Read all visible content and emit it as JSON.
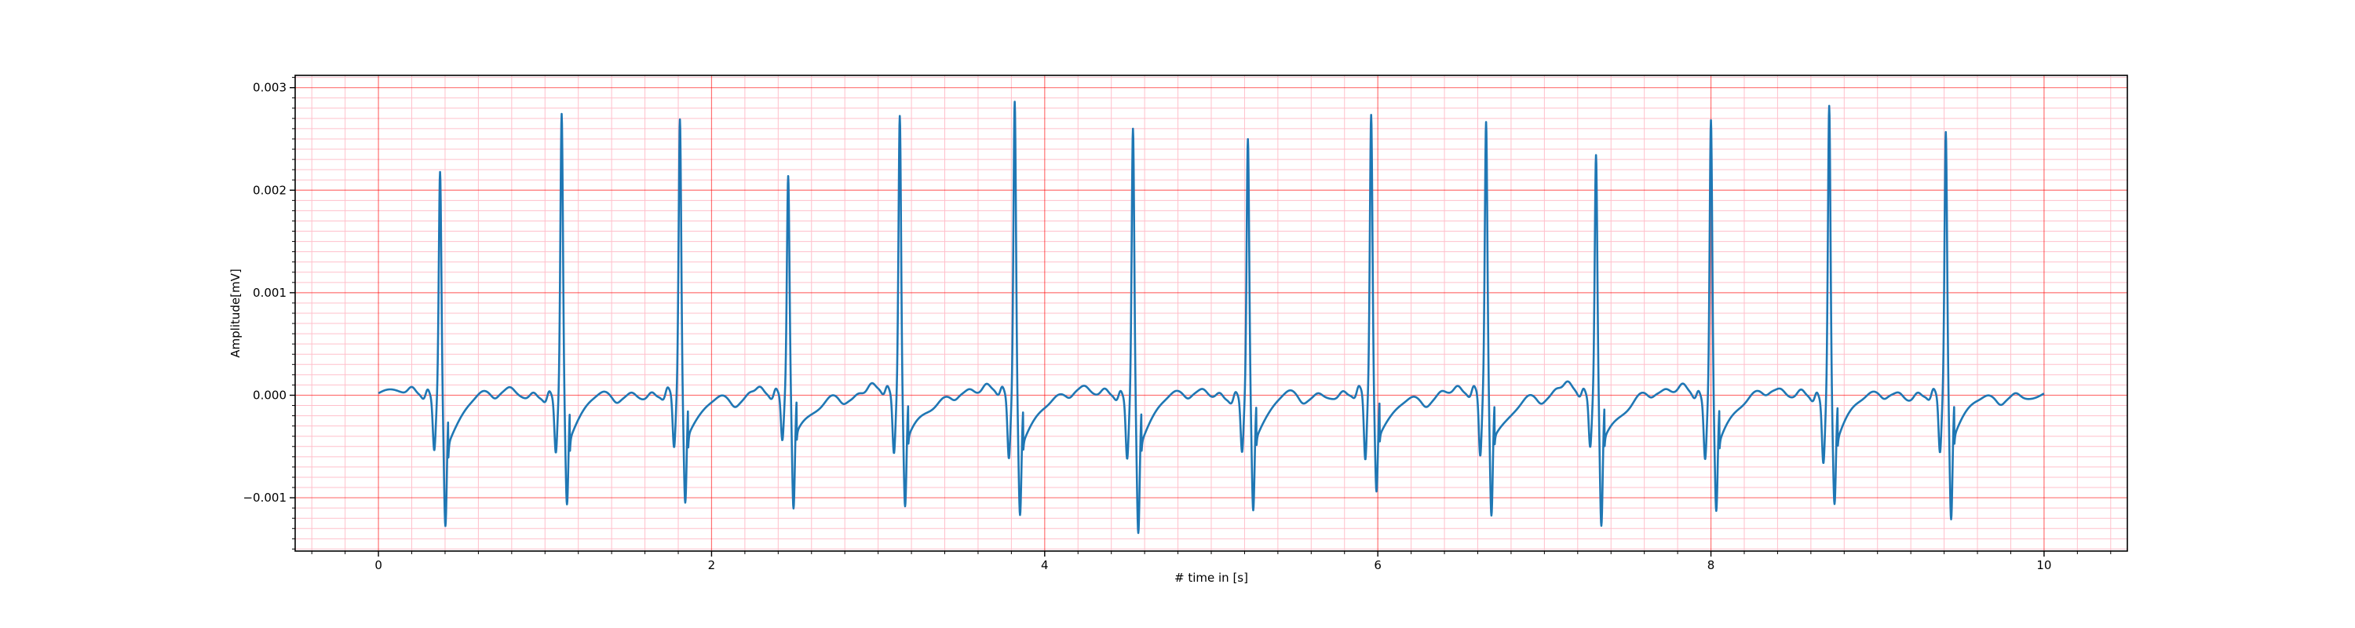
{
  "chart_data": {
    "type": "line",
    "title": "",
    "xlabel": "# time in [s]",
    "ylabel": "Amplitude[mV]",
    "xlim": [
      -0.5,
      10.5
    ],
    "ylim": [
      -0.00152,
      0.00312
    ],
    "x_ticks": [
      0,
      2,
      4,
      6,
      8,
      10
    ],
    "x_tick_labels": [
      "0",
      "2",
      "4",
      "6",
      "8",
      "10"
    ],
    "y_ticks": [
      -0.001,
      0.0,
      0.001,
      0.002,
      0.003
    ],
    "y_tick_labels": [
      "−0.001",
      "0.000",
      "0.001",
      "0.002",
      "0.003"
    ],
    "grid": {
      "major": true,
      "minor": true,
      "major_color": "#ff0000",
      "minor_color": "#ffc0cb"
    },
    "series": [
      {
        "color": "#1f77b4",
        "x_start": 0.0,
        "x_end": 10.0,
        "baseline": 0.0,
        "beats": [
          {
            "t": 0.37,
            "r": 0.00222,
            "q": -0.00052,
            "s": -0.00122
          },
          {
            "t": 1.1,
            "r": 0.00276,
            "q": -0.00055,
            "s": -0.00105
          },
          {
            "t": 1.81,
            "r": 0.00265,
            "q": -0.00055,
            "s": -0.00108
          },
          {
            "t": 2.46,
            "r": 0.00209,
            "q": -0.00047,
            "s": -0.00116
          },
          {
            "t": 3.13,
            "r": 0.00272,
            "q": -0.00058,
            "s": -0.00109
          },
          {
            "t": 3.82,
            "r": 0.0029,
            "q": -0.00061,
            "s": -0.00112
          },
          {
            "t": 4.53,
            "r": 0.00265,
            "q": -0.00059,
            "s": -0.00129
          },
          {
            "t": 5.22,
            "r": 0.0025,
            "q": -0.00055,
            "s": -0.00112
          },
          {
            "t": 5.96,
            "r": 0.00269,
            "q": -0.00068,
            "s": -0.00097
          },
          {
            "t": 6.65,
            "r": 0.00262,
            "q": -0.00064,
            "s": -0.0012
          },
          {
            "t": 7.31,
            "r": 0.00235,
            "q": -0.0005,
            "s": -0.00127
          },
          {
            "t": 8.0,
            "r": 0.00274,
            "q": -0.00058,
            "s": -0.00108
          },
          {
            "t": 8.71,
            "r": 0.00287,
            "q": -0.00062,
            "s": -0.00103
          },
          {
            "t": 9.41,
            "r": 0.00256,
            "q": -0.00057,
            "s": -0.00122
          }
        ]
      }
    ]
  }
}
